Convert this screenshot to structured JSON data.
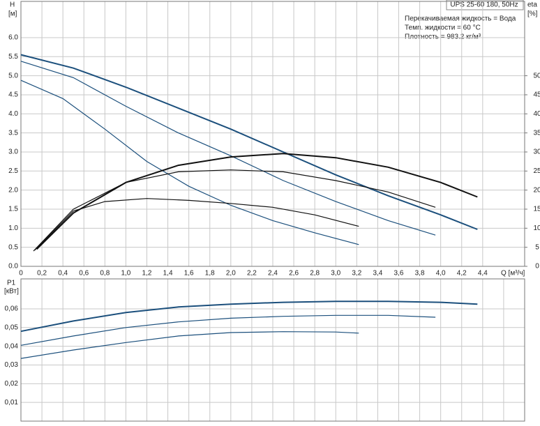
{
  "chart_data": [
    {
      "type": "line",
      "title": "UPS 25-60 180, 50Hz",
      "annotations": [
        "Перекачиваемая жидкость = Вода",
        "Темп. жидкости = 60 °C",
        "Плотность = 983.2 кг/м³"
      ],
      "xlabel": "Q [м³/ч]",
      "ylabel": [
        "H",
        "[м]"
      ],
      "y2label": [
        "eta",
        "[%]"
      ],
      "xlim": [
        0,
        4.8
      ],
      "ylim": [
        0,
        6.95
      ],
      "y2lim": [
        0,
        69.5
      ],
      "grid": true,
      "xticks": [
        0,
        {
          "value": 0.2,
          "label": "0,2"
        },
        {
          "value": 0.4,
          "label": "0,4"
        },
        {
          "value": 0.6,
          "label": "0,6"
        },
        {
          "value": 0.8,
          "label": "0,8"
        },
        {
          "value": 1.0,
          "label": "1,0"
        },
        {
          "value": 1.2,
          "label": "1,2"
        },
        {
          "value": 1.4,
          "label": "1,4"
        },
        {
          "value": 1.6,
          "label": "1,6"
        },
        {
          "value": 1.8,
          "label": "1,8"
        },
        {
          "value": 2.0,
          "label": "2,0"
        },
        {
          "value": 2.2,
          "label": "2,2"
        },
        {
          "value": 2.4,
          "label": "2,4"
        },
        {
          "value": 2.6,
          "label": "2,6"
        },
        {
          "value": 2.8,
          "label": "2,8"
        },
        {
          "value": 3.0,
          "label": "3,0"
        },
        {
          "value": 3.2,
          "label": "3,2"
        },
        {
          "value": 3.4,
          "label": "3,4"
        },
        {
          "value": 3.6,
          "label": "3,6"
        },
        {
          "value": 3.8,
          "label": "3,8"
        },
        {
          "value": 4.0,
          "label": "4,0"
        },
        {
          "value": 4.2,
          "label": "4,2"
        },
        {
          "value": 4.4,
          "label": "4,4"
        }
      ],
      "yticks": [
        {
          "value": 0,
          "label": "0.0"
        },
        0.5,
        {
          "value": 1,
          "label": "1.0"
        },
        1.5,
        {
          "value": 2,
          "label": "2.0"
        },
        2.5,
        {
          "value": 3,
          "label": "3.0"
        },
        3.5,
        {
          "value": 4,
          "label": "4.0"
        },
        4.5,
        {
          "value": 5,
          "label": "5.0"
        },
        5.5,
        {
          "value": 6,
          "label": "6.0"
        }
      ],
      "y2ticks": [
        0,
        5,
        10,
        15,
        20,
        25,
        30,
        35,
        40,
        45,
        50
      ],
      "series": [
        {
          "color": "#1b4f7c",
          "x": [
            0,
            0.5,
            1.0,
            1.5,
            2.0,
            2.5,
            3.0,
            3.5,
            4.0,
            4.35
          ],
          "values": [
            5.55,
            5.2,
            4.7,
            4.15,
            3.6,
            3.0,
            2.4,
            1.85,
            1.35,
            0.97
          ]
        },
        {
          "color": "#1b4f7c",
          "x": [
            0,
            0.5,
            1.0,
            1.5,
            2.0,
            2.5,
            3.0,
            3.5,
            3.95
          ],
          "values": [
            5.38,
            4.95,
            4.2,
            3.5,
            2.9,
            2.25,
            1.7,
            1.2,
            0.82
          ]
        },
        {
          "color": "#1b4f7c",
          "x": [
            0,
            0.4,
            0.8,
            1.2,
            1.6,
            2.0,
            2.4,
            2.8,
            3.22
          ],
          "values": [
            4.88,
            4.4,
            3.6,
            2.75,
            2.1,
            1.6,
            1.2,
            0.88,
            0.57
          ]
        },
        {
          "color": "#111111",
          "axis": "y2",
          "x": [
            0.15,
            0.5,
            1.0,
            1.5,
            2.0,
            2.5,
            3.0,
            3.5,
            4.0,
            4.35
          ],
          "values": [
            4.5,
            14,
            22,
            26.5,
            28.7,
            29.6,
            28.5,
            26,
            22,
            18.2
          ]
        },
        {
          "color": "#111111",
          "axis": "y2",
          "x": [
            0.12,
            0.5,
            1.0,
            1.5,
            2.0,
            2.5,
            3.0,
            3.5,
            3.95
          ],
          "values": [
            4,
            15,
            22,
            24.8,
            25.3,
            24.8,
            22.5,
            19.5,
            15.5
          ]
        },
        {
          "color": "#111111",
          "axis": "y2",
          "x": [
            0.13,
            0.5,
            0.8,
            1.2,
            1.6,
            2.0,
            2.4,
            2.8,
            3.22
          ],
          "values": [
            4.2,
            14.5,
            17,
            17.8,
            17.3,
            16.5,
            15.5,
            13.5,
            10.5
          ]
        }
      ]
    },
    {
      "type": "line",
      "ylabel": [
        "P1",
        "[кВт]"
      ],
      "xlim": [
        0,
        4.8
      ],
      "ylim": [
        0,
        0.076
      ],
      "grid": true,
      "xticks": [
        0,
        0.2,
        0.4,
        0.6,
        0.8,
        1.0,
        1.2,
        1.4,
        1.6,
        1.8,
        2.0,
        2.2,
        2.4,
        2.6,
        2.8,
        3.0,
        3.2,
        3.4,
        3.6,
        3.8,
        4.0,
        4.2,
        4.4,
        4.6
      ],
      "yticks": [
        {
          "value": 0.01,
          "label": "0,01"
        },
        {
          "value": 0.02,
          "label": "0,02"
        },
        {
          "value": 0.03,
          "label": "0,03"
        },
        {
          "value": 0.04,
          "label": "0,04"
        },
        {
          "value": 0.05,
          "label": "0,05"
        },
        {
          "value": 0.06,
          "label": "0,06"
        }
      ],
      "series": [
        {
          "color": "#1b4f7c",
          "x": [
            0,
            0.5,
            1.0,
            1.5,
            2.0,
            2.5,
            3.0,
            3.5,
            4.0,
            4.35
          ],
          "values": [
            0.048,
            0.0535,
            0.058,
            0.061,
            0.0625,
            0.0635,
            0.064,
            0.064,
            0.0635,
            0.0625
          ]
        },
        {
          "color": "#1b4f7c",
          "x": [
            0,
            0.5,
            1.0,
            1.5,
            2.0,
            2.5,
            3.0,
            3.5,
            3.95
          ],
          "values": [
            0.0405,
            0.0455,
            0.05,
            0.053,
            0.055,
            0.056,
            0.0565,
            0.0565,
            0.0555
          ]
        },
        {
          "color": "#1b4f7c",
          "x": [
            0,
            0.5,
            1.0,
            1.5,
            2.0,
            2.5,
            3.0,
            3.22
          ],
          "values": [
            0.0335,
            0.038,
            0.042,
            0.0455,
            0.0473,
            0.0478,
            0.0476,
            0.047
          ]
        }
      ]
    }
  ]
}
